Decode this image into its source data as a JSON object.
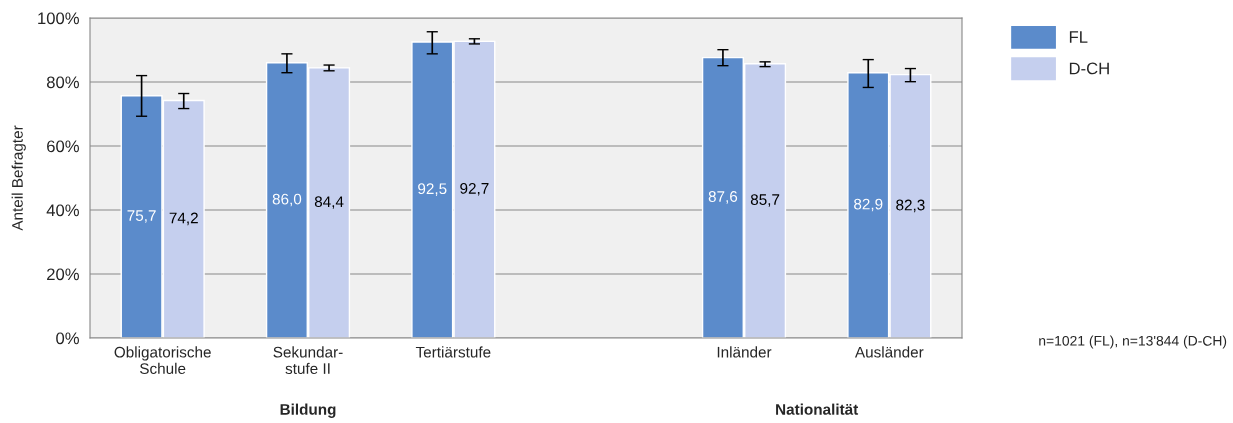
{
  "chart_data": {
    "type": "bar",
    "ylabel": "Anteil Befragter",
    "categories": [
      "Obligatorische\nSchule",
      "Sekundar-\nstufe II",
      "Tertiärstufe",
      null,
      "Inländer",
      "Ausländer"
    ],
    "series": [
      {
        "name": "FL",
        "color": "#5b8bcb",
        "values": [
          75.7,
          86.0,
          92.5,
          null,
          87.6,
          82.9
        ],
        "value_labels": [
          "75,7",
          "86,0",
          "92,5",
          null,
          "87,6",
          "82,9"
        ],
        "errors": [
          [
            69.3,
            82.0
          ],
          [
            82.9,
            88.8
          ],
          [
            88.8,
            95.7
          ],
          null,
          [
            85.1,
            90.1
          ],
          [
            78.3,
            87.0
          ]
        ]
      },
      {
        "name": "D-CH",
        "color": "#c5cfee",
        "values": [
          74.2,
          84.4,
          92.7,
          null,
          85.7,
          82.3
        ],
        "value_labels": [
          "74,2",
          "84,4",
          "92,7",
          null,
          "85,7",
          "82,3"
        ],
        "errors": [
          [
            71.7,
            76.4
          ],
          [
            83.5,
            85.3
          ],
          [
            91.9,
            93.5
          ],
          null,
          [
            84.8,
            86.3
          ],
          [
            80.1,
            84.2
          ]
        ]
      }
    ],
    "ylim": [
      0,
      100
    ],
    "yticks": [
      {
        "value": 0,
        "label": "0%"
      },
      {
        "value": 20,
        "label": "20%"
      },
      {
        "value": 40,
        "label": "40%"
      },
      {
        "value": 60,
        "label": "60%"
      },
      {
        "value": 80,
        "label": "80%"
      },
      {
        "value": 100,
        "label": "100%"
      }
    ],
    "grid": "y",
    "legend": "top right",
    "annotations": [
      "Bildung",
      "Nationalität",
      "n=1021 (FL), n=13'844 (D-CH)"
    ]
  }
}
